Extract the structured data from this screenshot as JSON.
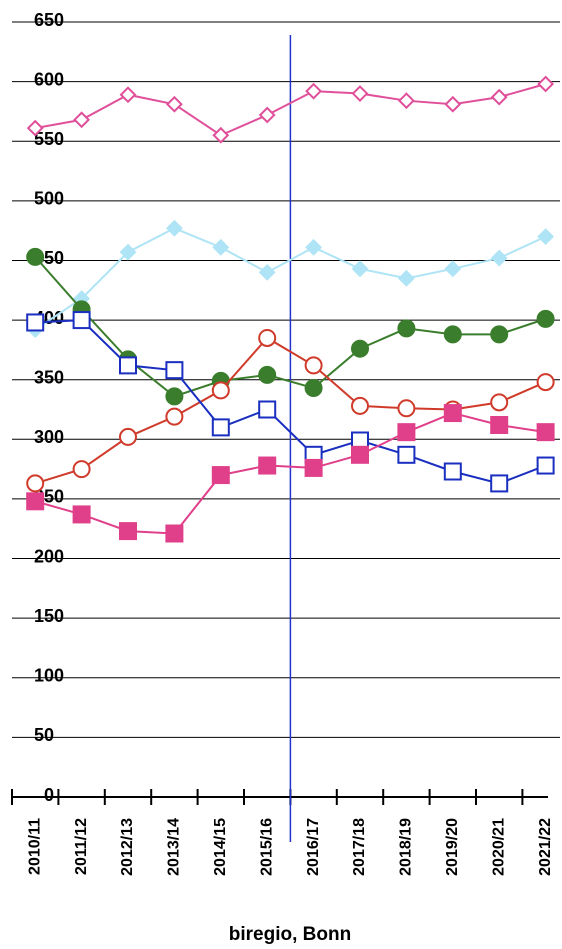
{
  "chart_data": {
    "type": "line",
    "x_label": "biregio, Bonn",
    "categories": [
      "2010/11",
      "2011/12",
      "2012/13",
      "2013/14",
      "2014/15",
      "2015/16",
      "2016/17",
      "2017/18",
      "2018/19",
      "2019/20",
      "2020/21",
      "2021/22"
    ],
    "ylim": [
      0,
      650
    ],
    "yticks": [
      0,
      50,
      100,
      150,
      200,
      250,
      300,
      350,
      400,
      450,
      500,
      550,
      600,
      650
    ],
    "grid": true,
    "vertical_line_after": "2015/16",
    "vertical_line_color": "#2233cc",
    "series": [
      {
        "color": "#e0509a",
        "marker": "diamond",
        "filled": false,
        "values": [
          561,
          568,
          589,
          581,
          555,
          572,
          592,
          590,
          584,
          581,
          587,
          598
        ]
      },
      {
        "color": "#aee4f5",
        "marker": "diamond",
        "filled": true,
        "values": [
          392,
          418,
          457,
          477,
          461,
          440,
          461,
          443,
          435,
          443,
          452,
          470
        ]
      },
      {
        "color": "#3a7d2c",
        "marker": "circle",
        "filled": true,
        "values": [
          453,
          409,
          367,
          336,
          349,
          354,
          343,
          376,
          393,
          388,
          388,
          401
        ]
      },
      {
        "color": "#d03a2a",
        "marker": "circle",
        "filled": false,
        "values": [
          263,
          275,
          302,
          319,
          341,
          385,
          362,
          328,
          326,
          325,
          331,
          348
        ]
      },
      {
        "color": "#1a2fc0",
        "marker": "square",
        "filled": false,
        "values": [
          398,
          400,
          362,
          358,
          310,
          325,
          287,
          299,
          287,
          273,
          263,
          278
        ]
      },
      {
        "color": "#e0408a",
        "marker": "square",
        "filled": true,
        "values": [
          248,
          237,
          223,
          221,
          270,
          278,
          276,
          287,
          306,
          322,
          312,
          306
        ]
      }
    ]
  }
}
